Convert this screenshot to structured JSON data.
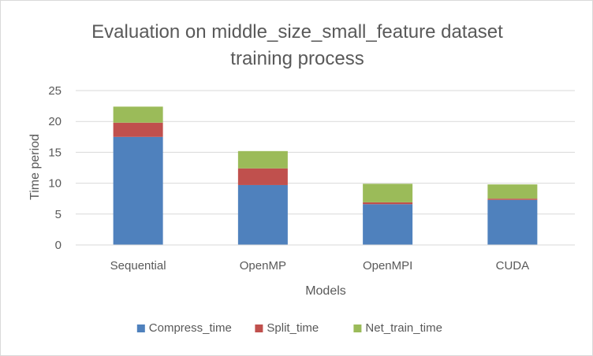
{
  "chart_data": {
    "type": "bar",
    "stacked": true,
    "title_lines": [
      "Evaluation on middle_size_small_feature  dataset",
      "training process"
    ],
    "xlabel": "Models",
    "ylabel": "Time period",
    "ylim": [
      0,
      25
    ],
    "yticks": [
      0,
      5,
      10,
      15,
      20,
      25
    ],
    "grid": true,
    "legend_position": "bottom",
    "categories": [
      "Sequential",
      "OpenMP",
      "OpenMPI",
      "CUDA"
    ],
    "series": [
      {
        "name": "Compress_time",
        "color": "#4f81bd",
        "values": [
          17.5,
          9.7,
          6.6,
          7.3
        ]
      },
      {
        "name": "Split_time",
        "color": "#c0504d",
        "values": [
          2.3,
          2.7,
          0.3,
          0.2
        ]
      },
      {
        "name": "Net_train_time",
        "color": "#9bbb59",
        "values": [
          2.6,
          2.8,
          3.0,
          2.3
        ]
      }
    ]
  }
}
